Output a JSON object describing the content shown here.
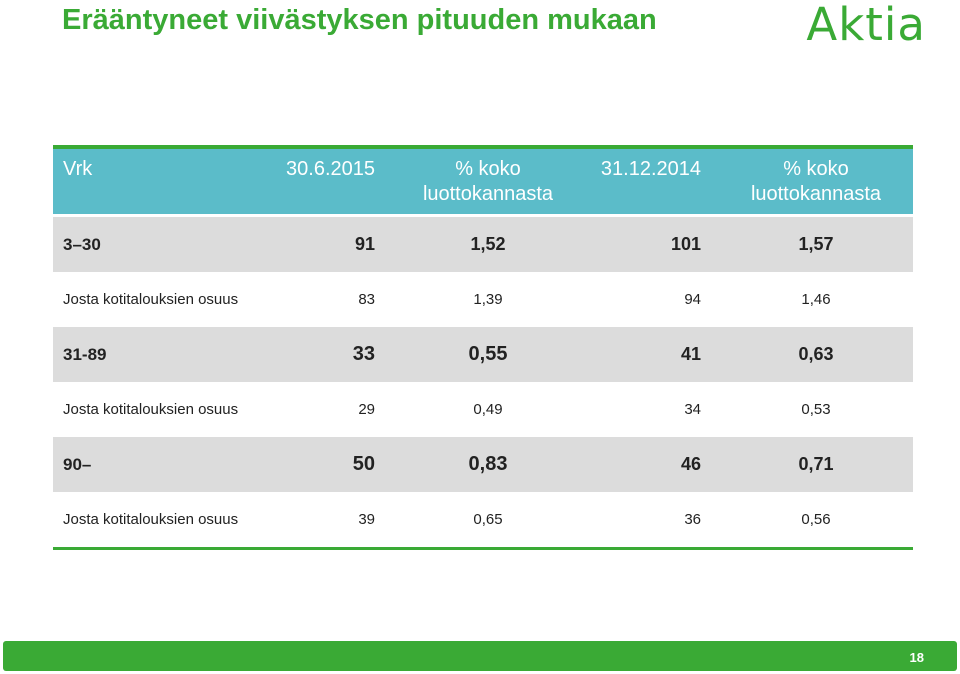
{
  "title": "Erääntyneet viivästyksen pituuden mukaan",
  "logo": "Aktia",
  "brand_color": "#3aaa35",
  "header_color": "#5bbcc9",
  "table": {
    "headers": [
      "Vrk",
      "30.6.2015",
      "% koko luottokannasta",
      "31.12.2014",
      "% koko luottokannasta"
    ],
    "rows": [
      {
        "label": "3–30",
        "v1": "91",
        "p1": "1,52",
        "v2": "101",
        "p2": "1,57"
      },
      {
        "label": "Josta kotitalouksien osuus",
        "v1": "83",
        "p1": "1,39",
        "v2": "94",
        "p2": "1,46"
      },
      {
        "label": "31-89",
        "v1": "33",
        "p1": "0,55",
        "v2": "41",
        "p2": "0,63"
      },
      {
        "label": "Josta kotitalouksien osuus",
        "v1": "29",
        "p1": "0,49",
        "v2": "34",
        "p2": "0,53"
      },
      {
        "label": "90–",
        "v1": "50",
        "p1": "0,83",
        "v2": "46",
        "p2": "0,71"
      },
      {
        "label": "Josta kotitalouksien osuus",
        "v1": "39",
        "p1": "0,65",
        "v2": "36",
        "p2": "0,56"
      }
    ]
  },
  "page_number": "18"
}
